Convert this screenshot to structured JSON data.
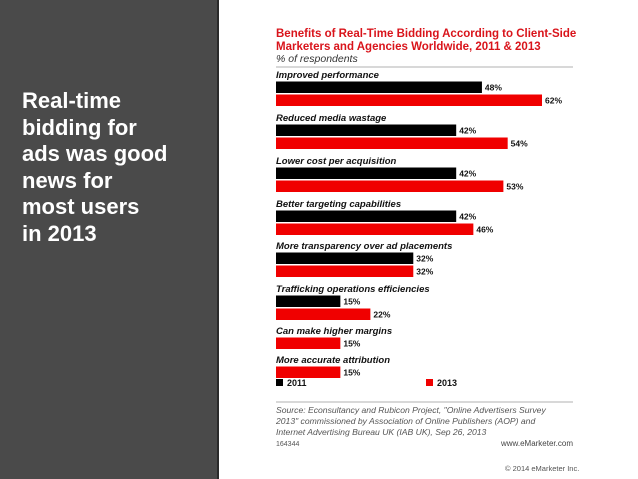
{
  "slide": {
    "headline": "Real-time\nbidding for\nads was good\nnews for\nmost users\nin 2013",
    "copyright": "© 2014 eMarketer Inc."
  },
  "colors": {
    "panel": "#4a4a4a",
    "series_2011": "#000000",
    "series_2013": "#f00000",
    "title": "#d9141b"
  },
  "chart_data": {
    "type": "bar",
    "orientation": "horizontal",
    "title": "Benefits of Real-Time Bidding According to Client-Side Marketers and Agencies Worldwide, 2011 & 2013",
    "subtitle": "% of respondents",
    "categories": [
      "Improved performance",
      "Reduced media wastage",
      "Lower cost per acquisition",
      "Better targeting capabilities",
      "More transparency over ad placements",
      "Trafficking operations efficiencies",
      "Can make higher margins",
      "More accurate attribution"
    ],
    "series": [
      {
        "name": "2011",
        "color": "#000000",
        "values": [
          48,
          42,
          42,
          42,
          32,
          15,
          null,
          null
        ]
      },
      {
        "name": "2013",
        "color": "#f00000",
        "values": [
          62,
          54,
          53,
          46,
          32,
          22,
          15,
          15
        ]
      }
    ],
    "value_suffix": "%",
    "xlim": [
      0,
      62
    ],
    "grid": false,
    "legend": "bottom-left",
    "source": "Source: Econsultancy and Rubicon Project, \"Online Advertisers Survey 2013\" commissioned by Association of Online Publishers (AOP) and Internet Advertising Bureau UK (IAB UK), Sep 26, 2013",
    "chart_id": "164344",
    "brand": "www.eMarketer.com"
  }
}
